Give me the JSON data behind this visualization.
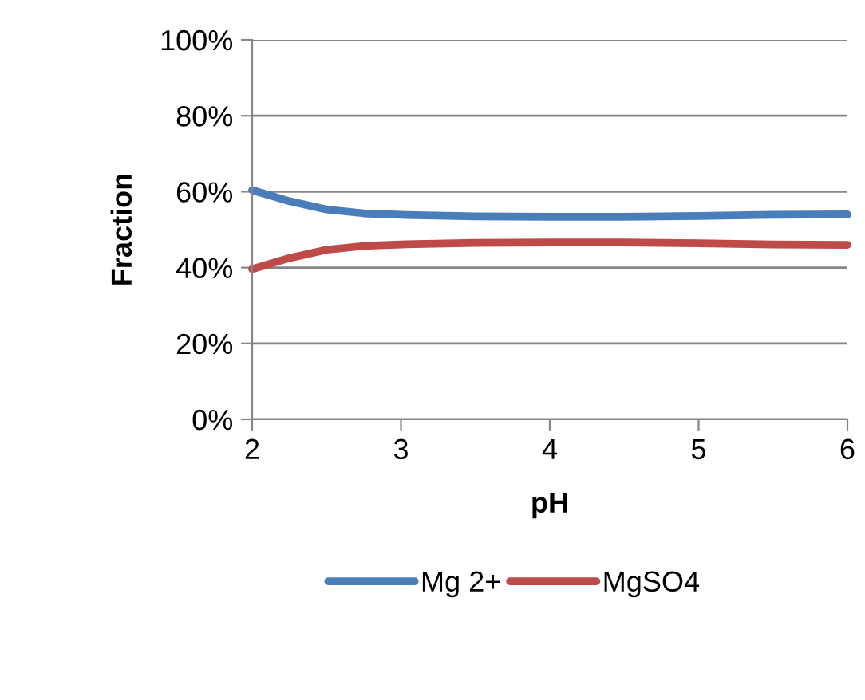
{
  "chart_data": {
    "type": "line",
    "xlabel": "pH",
    "ylabel": "Fraction",
    "x": [
      2,
      2.25,
      2.5,
      2.75,
      3,
      3.5,
      4,
      4.5,
      5,
      5.5,
      6
    ],
    "series": [
      {
        "name": "Mg 2+",
        "color": "#4a7ebb",
        "values": [
          60.4,
          57.5,
          55.3,
          54.3,
          53.9,
          53.5,
          53.4,
          53.4,
          53.6,
          53.9,
          54.0
        ]
      },
      {
        "name": "MgSO4",
        "color": "#be4b48",
        "values": [
          39.6,
          42.5,
          44.7,
          45.7,
          46.1,
          46.5,
          46.6,
          46.6,
          46.4,
          46.1,
          46.0
        ]
      }
    ],
    "xlim": [
      2,
      6
    ],
    "xticks": [
      2,
      3,
      4,
      5,
      6
    ],
    "ylim": [
      0,
      100
    ],
    "yticks": [
      {
        "value": 0,
        "label": "0%"
      },
      {
        "value": 20,
        "label": "20%"
      },
      {
        "value": 40,
        "label": "40%"
      },
      {
        "value": 60,
        "label": "60%"
      },
      {
        "value": 80,
        "label": "80%"
      },
      {
        "value": 100,
        "label": "100%"
      }
    ],
    "grid": "y",
    "legend": "bottom",
    "marker": "none",
    "line_style": "solid"
  }
}
